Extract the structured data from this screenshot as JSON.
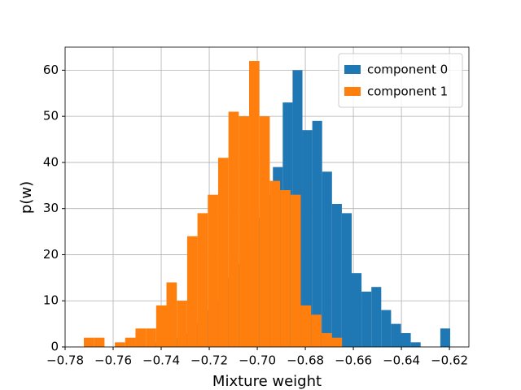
{
  "chart_data": {
    "type": "histogram",
    "xlabel": "Mixture weight",
    "ylabel": "p(w)",
    "xlim": [
      -0.78,
      -0.6119
    ],
    "ylim": [
      0,
      65
    ],
    "xticks": [
      {
        "value": -0.78,
        "label": "−0.78"
      },
      {
        "value": -0.76,
        "label": "−0.76"
      },
      {
        "value": -0.74,
        "label": "−0.74"
      },
      {
        "value": -0.72,
        "label": "−0.72"
      },
      {
        "value": -0.7,
        "label": "−0.70"
      },
      {
        "value": -0.68,
        "label": "−0.68"
      },
      {
        "value": -0.66,
        "label": "−0.66"
      },
      {
        "value": -0.64,
        "label": "−0.64"
      },
      {
        "value": -0.62,
        "label": "−0.62"
      }
    ],
    "yticks": [
      0,
      10,
      20,
      30,
      40,
      50,
      60
    ],
    "grid": true,
    "legend": "upper right",
    "series": [
      {
        "name": "component 0",
        "color": "#1f77b4",
        "bins": [
          -0.7427,
          -0.7386,
          -0.7345,
          -0.7304,
          -0.7263,
          -0.7222,
          -0.7181,
          -0.714,
          -0.7099,
          -0.7058,
          -0.7017,
          -0.6976,
          -0.6935,
          -0.6894,
          -0.6853,
          -0.6812,
          -0.6771,
          -0.673,
          -0.6689,
          -0.6648,
          -0.6607,
          -0.6566,
          -0.6525,
          -0.6484,
          -0.6443,
          -0.6402,
          -0.6361,
          -0.632,
          -0.6279,
          -0.6238,
          -0.6197
        ],
        "values": [
          1,
          0,
          2,
          3,
          5,
          8,
          10,
          15,
          18,
          22,
          28,
          33,
          39,
          53,
          60,
          47,
          49,
          38,
          31,
          29,
          16,
          12,
          13,
          8,
          5,
          3,
          1,
          0,
          0,
          4
        ]
      },
      {
        "name": "component 1",
        "color": "#ff7f0e",
        "bins": [
          -0.7722,
          -0.7679,
          -0.7636,
          -0.7593,
          -0.755,
          -0.7507,
          -0.7464,
          -0.7421,
          -0.7378,
          -0.7335,
          -0.7292,
          -0.7249,
          -0.7206,
          -0.7163,
          -0.712,
          -0.7077,
          -0.7034,
          -0.6991,
          -0.6948,
          -0.6905,
          -0.6862,
          -0.6819,
          -0.6776,
          -0.6733,
          -0.669,
          -0.6647
        ],
        "values": [
          2,
          2,
          0,
          1,
          2,
          4,
          4,
          9,
          14,
          10,
          24,
          29,
          33,
          41,
          51,
          50,
          62,
          50,
          36,
          34,
          33,
          9,
          7,
          3,
          2
        ]
      }
    ]
  }
}
